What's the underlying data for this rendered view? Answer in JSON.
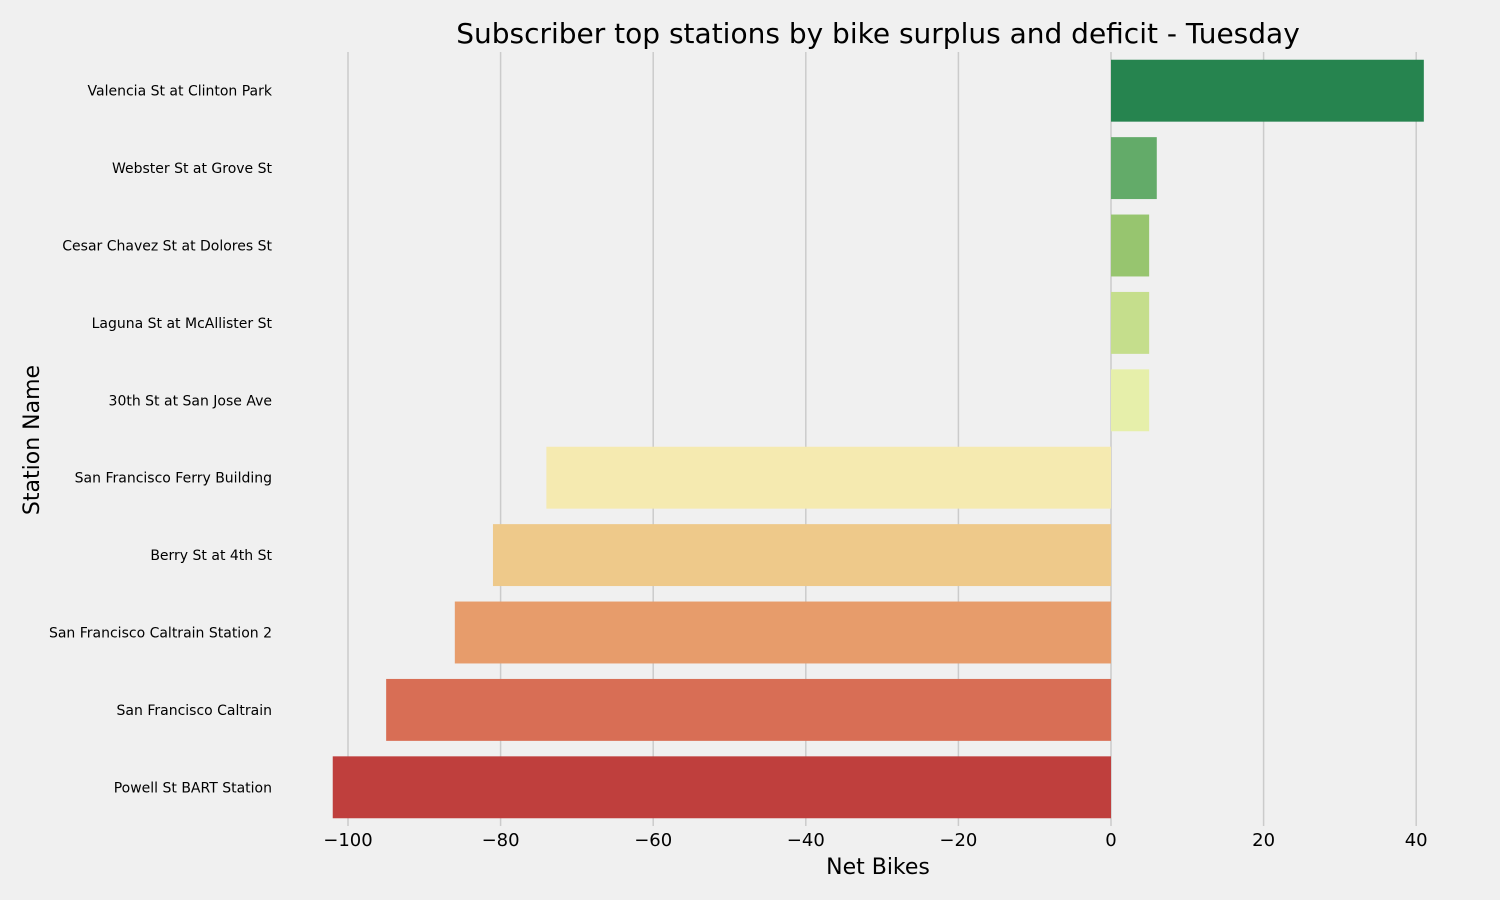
{
  "chart_data": {
    "type": "bar",
    "orientation": "horizontal",
    "title": "Subscriber top stations by bike surplus and deficit - Tuesday",
    "xlabel": "Net Bikes",
    "ylabel": "Station Name",
    "xlim": [
      -105,
      45
    ],
    "xticks": [
      -100,
      -80,
      -60,
      -40,
      -20,
      0,
      20,
      40
    ],
    "xtick_labels": [
      "−100",
      "−80",
      "−60",
      "−40",
      "−20",
      "0",
      "20",
      "40"
    ],
    "grid": "vertical",
    "categories": [
      "Valencia St at Clinton Park",
      "Webster St at Grove St",
      "Cesar Chavez St at Dolores St",
      "Laguna St at McAllister St",
      "30th St at San Jose Ave",
      "San Francisco Ferry Building",
      "Berry St at 4th St",
      "San Francisco Caltrain Station 2",
      "San Francisco Caltrain",
      "Powell St BART Station"
    ],
    "values": [
      41,
      6,
      5,
      5,
      5,
      -74,
      -81,
      -86,
      -95,
      -102
    ],
    "colors": [
      "#26844f",
      "#63ab69",
      "#97c56f",
      "#c5de8c",
      "#e6efaa",
      "#f5eab0",
      "#eec98a",
      "#e79c6b",
      "#d86e55",
      "#bf3f3d"
    ]
  }
}
